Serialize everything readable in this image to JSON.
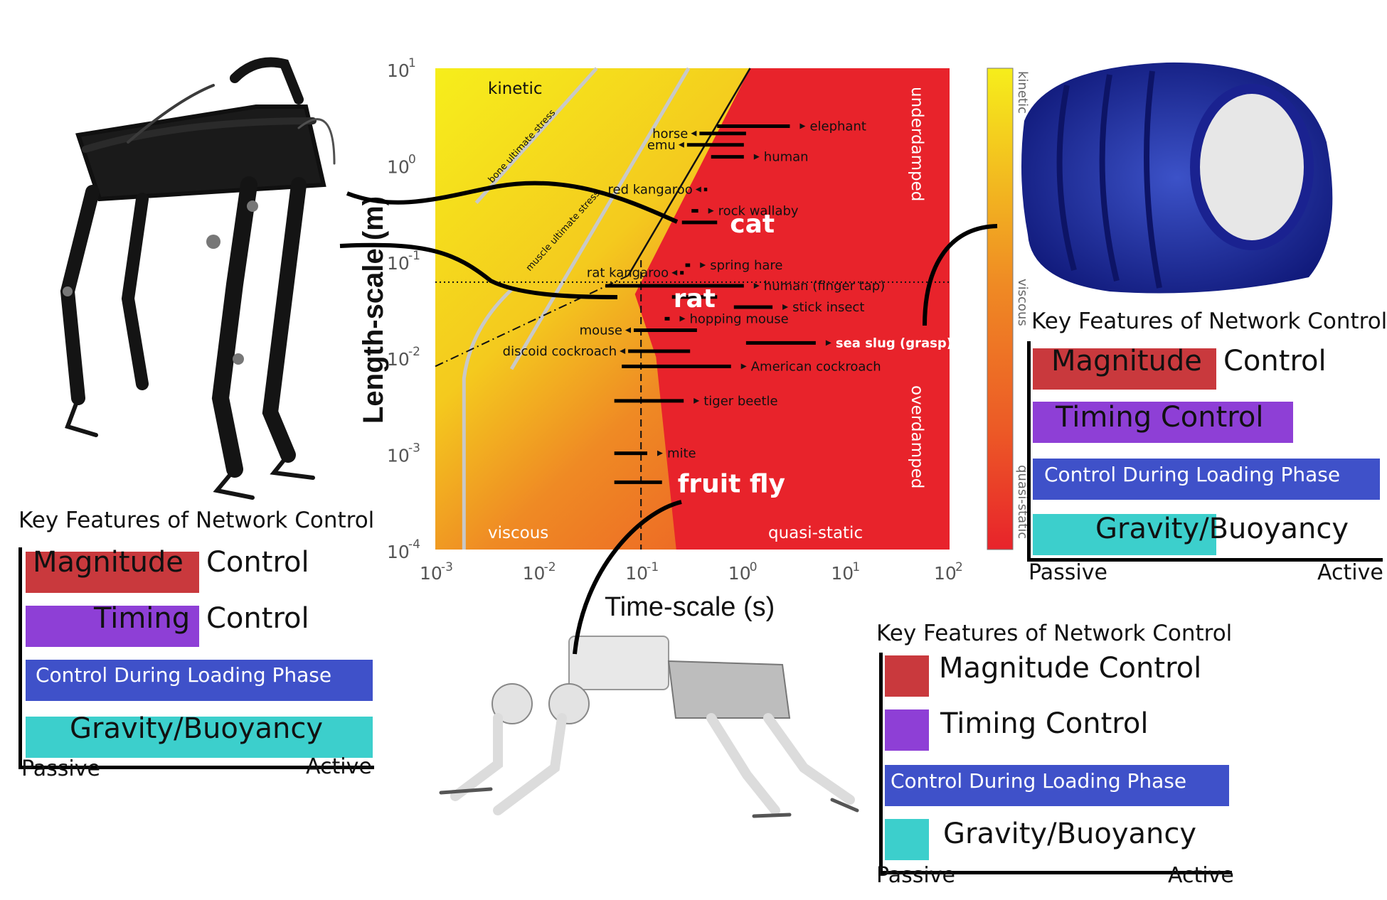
{
  "chart_data": {
    "type": "range",
    "x_scale": "log",
    "y_scale": "log",
    "xlim": [
      0.001,
      100
    ],
    "ylim": [
      0.0001,
      10
    ],
    "xlabel": "Time-scale (s)",
    "ylabel": "Length-scale (m)",
    "x_ticks": [
      "10",
      "10",
      "10",
      "10",
      "10",
      "10"
    ],
    "x_tick_exponents": [
      "-3",
      "-2",
      "-1",
      "0",
      "1",
      "2"
    ],
    "y_ticks": [
      "10",
      "10",
      "10",
      "10",
      "10",
      "10"
    ],
    "y_tick_exponents": [
      "-4",
      "-3",
      "-2",
      "-1",
      "0",
      "1"
    ],
    "grid": false,
    "regions": {
      "kinetic": "kinetic",
      "viscous": "viscous",
      "quasi_static": "quasi-static",
      "underdamped": "underdamped",
      "overdamped": "overdamped"
    },
    "boundary_lines": {
      "bone": "bone ultimate stress",
      "muscle": "muscle ultimate stress"
    },
    "colorbar": [
      "kinetic",
      "viscous",
      "quasi-static"
    ],
    "colors": {
      "kinetic": "#f5ec1c",
      "viscous": "#ef7a22",
      "quasi_static": "#e8232b"
    },
    "animals": [
      {
        "name": "elephant",
        "length_m": 2.5,
        "t_min_s": 0.55,
        "t_max_s": 2.8
      },
      {
        "name": "horse",
        "length_m": 2.1,
        "t_min_s": 0.37,
        "t_max_s": 1.05
      },
      {
        "name": "emu",
        "length_m": 1.6,
        "t_min_s": 0.28,
        "t_max_s": 1.0
      },
      {
        "name": "human",
        "length_m": 1.2,
        "t_min_s": 0.48,
        "t_max_s": 1.0
      },
      {
        "name": "red kangaroo",
        "length_m": 0.55,
        "t_min_s": 0.41,
        "t_max_s": 0.44
      },
      {
        "name": "rock wallaby",
        "length_m": 0.33,
        "t_min_s": 0.31,
        "t_max_s": 0.36
      },
      {
        "name": "cat",
        "length_m": 0.25,
        "t_min_s": 0.25,
        "t_max_s": 0.55
      },
      {
        "name": "spring hare",
        "length_m": 0.09,
        "t_min_s": 0.27,
        "t_max_s": 0.3
      },
      {
        "name": "rat kangaroo",
        "length_m": 0.075,
        "t_min_s": 0.24,
        "t_max_s": 0.26
      },
      {
        "name": "human (finger tap)",
        "length_m": 0.055,
        "t_min_s": 0.045,
        "t_max_s": 1.0
      },
      {
        "name": "rat",
        "length_m": 0.042,
        "t_min_s": 0.2,
        "t_max_s": 0.55
      },
      {
        "name": "stick insect",
        "length_m": 0.033,
        "t_min_s": 0.8,
        "t_max_s": 1.9
      },
      {
        "name": "hopping mouse",
        "length_m": 0.025,
        "t_min_s": 0.17,
        "t_max_s": 0.19
      },
      {
        "name": "sea slug (grasp)",
        "length_m": 0.014,
        "t_min_s": 1.05,
        "t_max_s": 5.0
      },
      {
        "name": "mouse",
        "length_m": 0.019,
        "t_min_s": 0.085,
        "t_max_s": 0.35
      },
      {
        "name": "discoid cockroach",
        "length_m": 0.0115,
        "t_min_s": 0.075,
        "t_max_s": 0.3
      },
      {
        "name": "American cockroach",
        "length_m": 0.008,
        "t_min_s": 0.065,
        "t_max_s": 0.75
      },
      {
        "name": "tiger beetle",
        "length_m": 0.0035,
        "t_min_s": 0.055,
        "t_max_s": 0.26
      },
      {
        "name": "mite",
        "length_m": 0.001,
        "t_min_s": 0.055,
        "t_max_s": 0.115
      },
      {
        "name": "fruit fly",
        "length_m": 0.0005,
        "t_min_s": 0.055,
        "t_max_s": 0.16
      }
    ],
    "ref_dashed_time_s": 0.1,
    "ref_dotted_length_m": 0.06
  },
  "key_panels": [
    {
      "title": "Key Features of Network Control",
      "rows": [
        {
          "label1": "Magnitude",
          "label2": "Control",
          "color": "#c9393d"
        },
        {
          "label1": "Timing",
          "label2": "Control",
          "color": "#8e3fd6"
        },
        {
          "label1": "Control During Loading Phase",
          "label2": "",
          "color": "#3f51c9"
        },
        {
          "label1": "Gravity/Buoyancy",
          "label2": "",
          "color": "#3ccfcc"
        }
      ],
      "passive": "Passive",
      "active": "Active"
    },
    {
      "title": "Key Features of Network Control",
      "rows": [
        {
          "label1": "Magnitude",
          "label2": "Control",
          "color": "#c9393d"
        },
        {
          "label1": "Timing Control",
          "label2": "",
          "color": "#8e3fd6"
        },
        {
          "label1": "Control During Loading Phase",
          "label2": "",
          "color": "#3f51c9"
        },
        {
          "label1": "Gravity/Buoyancy",
          "label2": "",
          "color": "#3ccfcc"
        }
      ],
      "passive": "Passive",
      "active": "Active"
    },
    {
      "title": "Key Features of Network Control",
      "rows": [
        {
          "label1": "Magnitude Control",
          "label2": "",
          "color": "#c9393d"
        },
        {
          "label1": "Timing Control",
          "label2": "",
          "color": "#8e3fd6"
        },
        {
          "label1": "Control During Loading Phase",
          "label2": "",
          "color": "#3f51c9"
        },
        {
          "label1": "Gravity/Buoyancy",
          "label2": "",
          "color": "#3ccfcc"
        }
      ],
      "passive": "Passive",
      "active": "Active"
    }
  ],
  "robots": [
    {
      "name": "black quadruped robot",
      "icon": "legged-robot-black"
    },
    {
      "name": "blue soft robot",
      "icon": "soft-robot-blue"
    },
    {
      "name": "white quadruped robot",
      "icon": "legged-robot-white"
    }
  ]
}
